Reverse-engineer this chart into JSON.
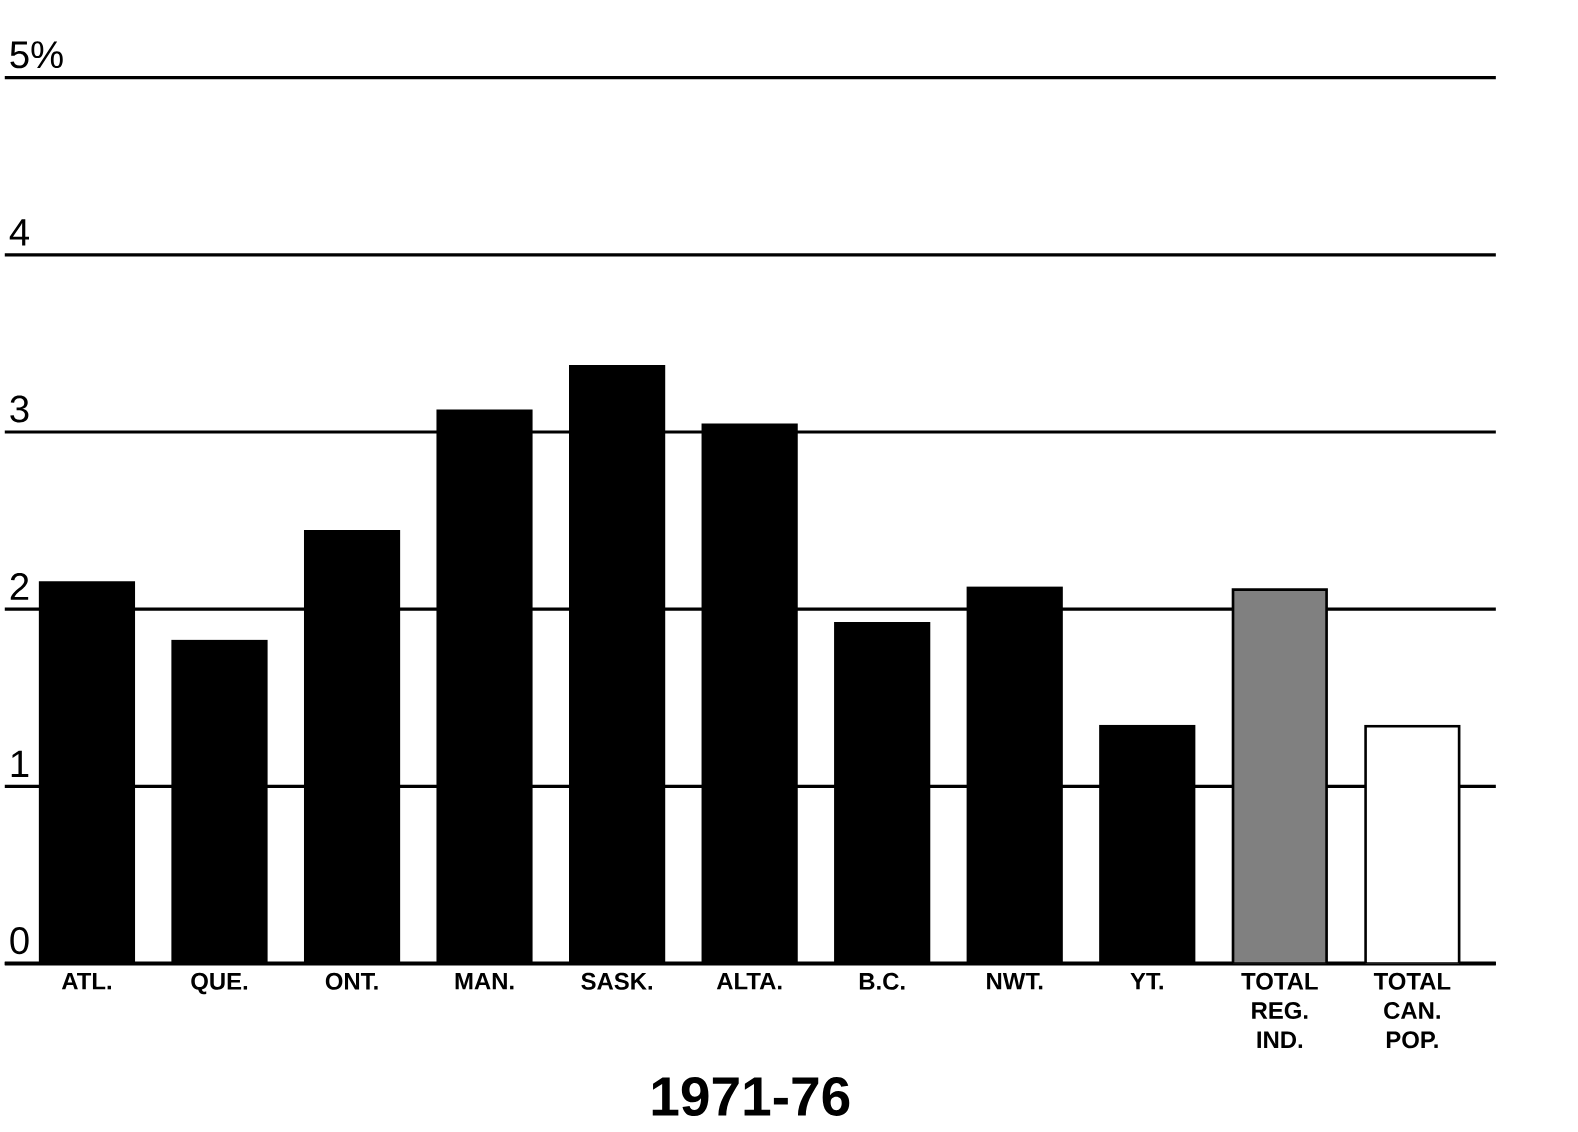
{
  "chart_data": {
    "type": "bar",
    "xlabel": "1971-76",
    "categories": [
      "ATL.",
      "QUE.",
      "ONT.",
      "MAN.",
      "SASK.",
      "ALTA.",
      "B.C.",
      "NWT.",
      "YT.",
      "TOTAL REG. IND.",
      "TOTAL CAN. POP."
    ],
    "values": [
      2.15,
      1.82,
      2.44,
      3.12,
      3.37,
      3.04,
      1.92,
      2.12,
      1.34,
      2.11,
      1.34
    ],
    "colors": [
      "#000000",
      "#000000",
      "#000000",
      "#000000",
      "#000000",
      "#000000",
      "#000000",
      "#000000",
      "#000000",
      "#808080",
      "#ffffff"
    ],
    "ylim": [
      0,
      5
    ],
    "yticks": [
      0,
      1,
      2,
      3,
      4,
      {
        "value": 5,
        "label": "5%"
      }
    ],
    "grid": "y"
  }
}
